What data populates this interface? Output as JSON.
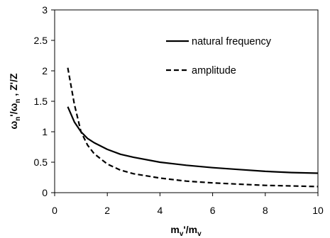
{
  "chart_data": {
    "type": "line",
    "title": "",
    "xlabel": {
      "base": "m",
      "sub": "v",
      "mid": "'/m",
      "sub2": "v"
    },
    "ylabel": {
      "p1": "ω",
      "s1": "n",
      "p2": "'/ω",
      "s2": "n",
      "p3": " ,  Z'/Z"
    },
    "xlim": [
      0,
      10
    ],
    "ylim": [
      0,
      3
    ],
    "x_ticks": [
      "0",
      "2",
      "4",
      "6",
      "8",
      "10"
    ],
    "y_ticks": [
      "0",
      "0.5",
      "1",
      "1.5",
      "2",
      "2.5",
      "3"
    ],
    "grid": false,
    "legend_position": "top-right",
    "series": [
      {
        "name": "natural frequency",
        "style": "solid",
        "x": [
          0.5,
          0.75,
          1,
          1.25,
          1.5,
          2,
          2.5,
          3,
          4,
          5,
          6,
          7,
          8,
          9,
          10
        ],
        "y": [
          1.41,
          1.16,
          1.0,
          0.89,
          0.82,
          0.71,
          0.63,
          0.58,
          0.5,
          0.45,
          0.41,
          0.38,
          0.35,
          0.33,
          0.32
        ]
      },
      {
        "name": "amplitude",
        "style": "dashed",
        "x": [
          0.5,
          0.75,
          1,
          1.25,
          1.5,
          2,
          2.5,
          3,
          4,
          5,
          6,
          7,
          8,
          9,
          10
        ],
        "y": [
          2.05,
          1.45,
          1.0,
          0.78,
          0.64,
          0.47,
          0.37,
          0.31,
          0.24,
          0.19,
          0.16,
          0.14,
          0.12,
          0.11,
          0.1
        ]
      }
    ]
  }
}
